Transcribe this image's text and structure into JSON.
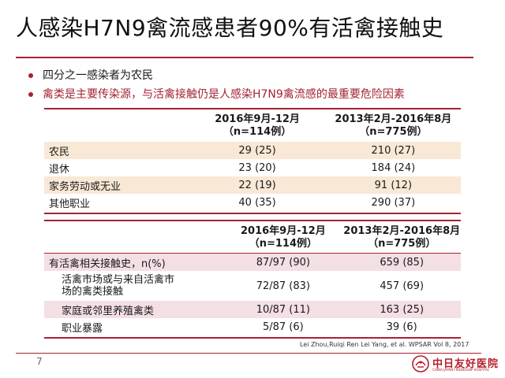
{
  "slide": {
    "title": "人感染H7N9禽流感患者90%有活禽接触史",
    "bullets": [
      "四分之一感染者为农民",
      "禽类是主要传染源，与活禽接触仍是人感染H7N9禽流感的最重要危险因素"
    ],
    "accent_color": "#a52233",
    "citation": "Lei Zhou,Ruiqi Ren Lei Yang, et al. WPSAR Vol 8, 2017",
    "page_number": "7",
    "logo": {
      "name": "中日友好医院",
      "sub": "CHINA-JAPAN FRIENDSHIP HOSPITAL",
      "icon": "hospital-emblem-icon"
    }
  },
  "table1": {
    "headers": [
      {
        "line1": "2016年9月-12月",
        "line2": "（n=114例）"
      },
      {
        "line1": "2013年2月-2016年8月",
        "line2": "（n=775例）"
      }
    ],
    "rows": [
      {
        "label": "农民",
        "a": "29 (25)",
        "b": "210 (27)"
      },
      {
        "label": "退休",
        "a": "23 (20)",
        "b": "184 (24)"
      },
      {
        "label": "家务劳动或无业",
        "a": "22 (19)",
        "b": "91 (12)"
      },
      {
        "label": "其他职业",
        "a": "40 (35)",
        "b": "290 (37)"
      }
    ]
  },
  "table2": {
    "headers": [
      {
        "line1": "2016年9月-12月",
        "line2": "（n=114例）"
      },
      {
        "line1": "2013年2月-2016年8月",
        "line2": "（n=775例）"
      }
    ],
    "rows": [
      {
        "label": "有活禽相关接触史，n(%)",
        "a": "87/97 (90)",
        "b": "659 (85)"
      },
      {
        "label": "活禽市场或与来自活禽市场的禽类接触",
        "a": "72/87 (83)",
        "b": "457 (69)"
      },
      {
        "label": "家庭或邻里养殖禽类",
        "a": "10/87 (11)",
        "b": "163 (25)"
      },
      {
        "label": "职业暴露",
        "a": "5/87 (6)",
        "b": "39 (6)"
      }
    ]
  }
}
